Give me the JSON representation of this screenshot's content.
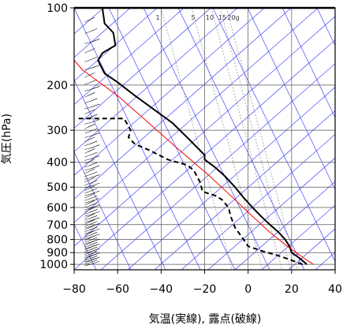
{
  "chart_data": {
    "type": "line",
    "title": "",
    "xlabel": "気温(実線), 露点(破線)",
    "ylabel": "気圧(hPa)",
    "xlim": [
      -80,
      40
    ],
    "ylim": [
      1050,
      100
    ],
    "yscale": "log",
    "grid": true,
    "x_ticks": [
      -80,
      -60,
      -40,
      -20,
      0,
      20,
      40
    ],
    "y_ticks": [
      100,
      200,
      300,
      400,
      500,
      600,
      700,
      800,
      900,
      1000
    ],
    "mixing_ratio_labels": [
      "1",
      "5",
      "10",
      "15",
      "20g"
    ],
    "series": [
      {
        "style": "solid-thick",
        "color": "#000000",
        "points": [
          [
            27,
            1000
          ],
          [
            24,
            950
          ],
          [
            20,
            900
          ],
          [
            19,
            850
          ],
          [
            17,
            800
          ],
          [
            14,
            750
          ],
          [
            10,
            700
          ],
          [
            6,
            650
          ],
          [
            2,
            600
          ],
          [
            -2,
            550
          ],
          [
            -6,
            500
          ],
          [
            -11,
            450
          ],
          [
            -15,
            420
          ],
          [
            -20,
            390
          ],
          [
            -20,
            375
          ],
          [
            -22,
            360
          ],
          [
            -28,
            320
          ],
          [
            -35,
            280
          ],
          [
            -43,
            250
          ],
          [
            -52,
            220
          ],
          [
            -60,
            195
          ],
          [
            -66,
            180
          ],
          [
            -69,
            160
          ],
          [
            -67,
            150
          ],
          [
            -61,
            140
          ],
          [
            -62,
            125
          ],
          [
            -66,
            115
          ],
          [
            -67,
            100
          ]
        ]
      },
      {
        "style": "dashed-thick",
        "color": "#000000",
        "points": [
          [
            25,
            1000
          ],
          [
            18,
            950
          ],
          [
            13,
            920
          ],
          [
            7,
            890
          ],
          [
            0,
            850
          ],
          [
            -3,
            780
          ],
          [
            -6,
            720
          ],
          [
            -8,
            650
          ],
          [
            -9,
            600
          ],
          [
            -12,
            560
          ],
          [
            -15,
            540
          ],
          [
            -21,
            520
          ],
          [
            -22,
            480
          ],
          [
            -25,
            430
          ],
          [
            -28,
            410
          ],
          [
            -37,
            390
          ],
          [
            -45,
            360
          ],
          [
            -52,
            340
          ],
          [
            -55,
            320
          ],
          [
            -54,
            300
          ],
          [
            -57,
            270
          ],
          [
            -78,
            270
          ]
        ]
      },
      {
        "style": "solid-thin",
        "color": "#ff0000",
        "points": [
          [
            30,
            1000
          ],
          [
            26,
            950
          ],
          [
            18,
            850
          ],
          [
            10,
            750
          ],
          [
            2,
            650
          ],
          [
            -7,
            550
          ],
          [
            -18,
            450
          ],
          [
            -33,
            350
          ],
          [
            -48,
            270
          ],
          [
            -60,
            220
          ],
          [
            -76,
            175
          ],
          [
            -86,
            140
          ]
        ]
      }
    ]
  }
}
